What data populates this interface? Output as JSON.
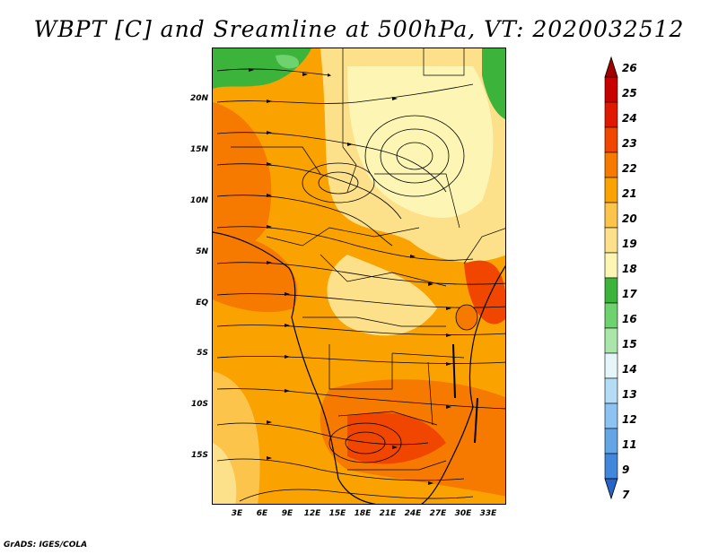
{
  "title": "WBPT [C] and Sreamline at 500hPa, VT: 2020032512",
  "credit": "GrADS: IGES/COLA",
  "lat_labels": [
    "20N",
    "15N",
    "10N",
    "5N",
    "EQ",
    "5S",
    "10S",
    "15S"
  ],
  "lon_labels": [
    "3E",
    "6E",
    "9E",
    "12E",
    "15E",
    "18E",
    "21E",
    "24E",
    "27E",
    "30E",
    "33E"
  ],
  "colorbar": {
    "labels": [
      "26",
      "25",
      "24",
      "23",
      "22",
      "21",
      "20",
      "19",
      "18",
      "17",
      "16",
      "15",
      "14",
      "13",
      "12",
      "11",
      "9",
      "7"
    ],
    "colors": [
      "#a00000",
      "#c80000",
      "#e11800",
      "#f04600",
      "#f77a00",
      "#faa200",
      "#fcc44a",
      "#fde08a",
      "#fdf5b4",
      "#3cb43c",
      "#6ed26e",
      "#aae6aa",
      "#e6f5fa",
      "#b4dcf5",
      "#8cc3f0",
      "#64a5e6",
      "#4187dc",
      "#2864c8"
    ]
  },
  "field_colors": {
    "yellow_light": "#fdf5b4",
    "yellow": "#fde08a",
    "orange_light": "#fcc44a",
    "orange": "#faa200",
    "orange_dark": "#f77a00",
    "red_orange": "#f04600",
    "green": "#3cb43c",
    "green_light": "#6ed26e"
  }
}
